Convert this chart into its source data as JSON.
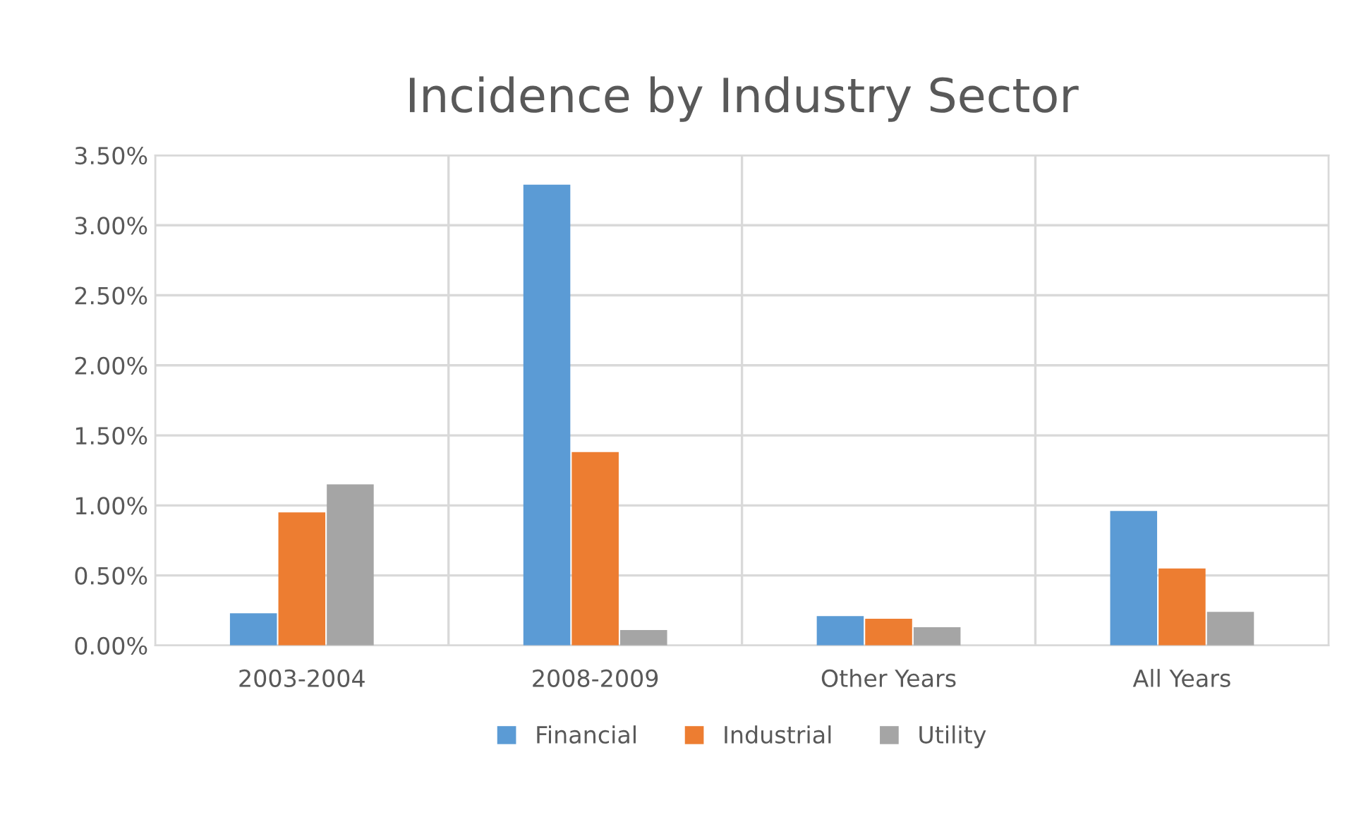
{
  "chart_data": {
    "type": "bar",
    "title": "Incidence by Industry Sector",
    "categories": [
      "2003-2004",
      "2008-2009",
      "Other Years",
      "All Years"
    ],
    "series": [
      {
        "name": "Financial",
        "color": "#5b9bd5",
        "values": [
          0.23,
          3.29,
          0.21,
          0.96
        ]
      },
      {
        "name": "Industrial",
        "color": "#ed7d31",
        "values": [
          0.95,
          1.38,
          0.19,
          0.55
        ]
      },
      {
        "name": "Utility",
        "color": "#a5a5a5",
        "values": [
          1.15,
          0.11,
          0.13,
          0.24
        ]
      }
    ],
    "ylim": [
      0,
      3.5
    ],
    "yticks": [
      {
        "value": 0,
        "label": "0.00%"
      },
      {
        "value": 0.5,
        "label": "0.50%"
      },
      {
        "value": 1,
        "label": "1.00%"
      },
      {
        "value": 1.5,
        "label": "1.50%"
      },
      {
        "value": 2,
        "label": "2.00%"
      },
      {
        "value": 2.5,
        "label": "2.50%"
      },
      {
        "value": 3,
        "label": "3.00%"
      },
      {
        "value": 3.5,
        "label": "3.50%"
      }
    ],
    "grid": true,
    "legend": "bottom"
  }
}
